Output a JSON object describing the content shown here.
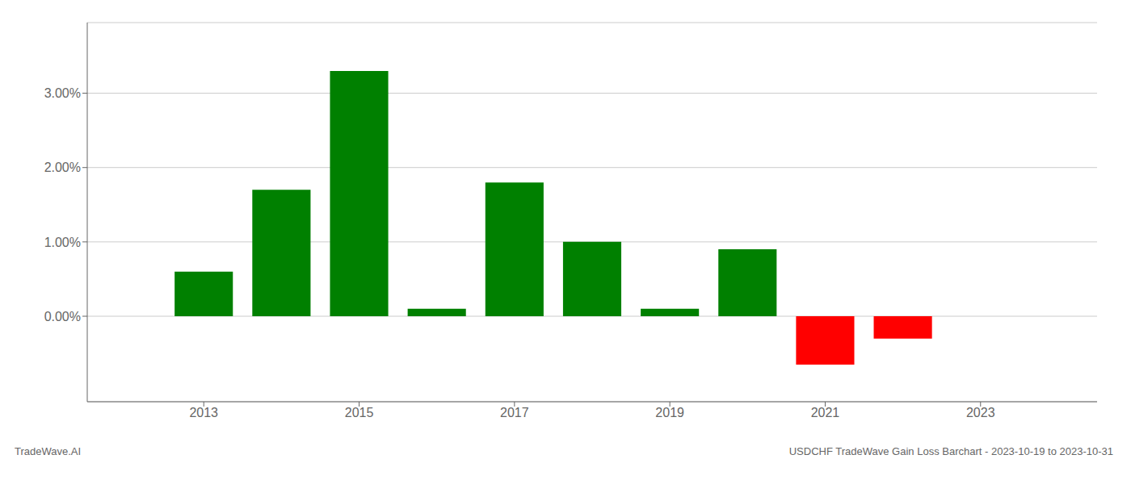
{
  "chart_data": {
    "type": "bar",
    "x": [
      2013,
      2014,
      2015,
      2016,
      2017,
      2018,
      2019,
      2020,
      2021,
      2022
    ],
    "values": [
      0.006,
      0.017,
      0.033,
      0.001,
      0.018,
      0.01,
      0.001,
      0.009,
      -0.0065,
      -0.003
    ],
    "colors": [
      "#008000",
      "#008000",
      "#008000",
      "#008000",
      "#008000",
      "#008000",
      "#008000",
      "#008000",
      "#ff0000",
      "#ff0000"
    ],
    "xlim": [
      2011.5,
      2024.5
    ],
    "xticks": [
      2013,
      2015,
      2017,
      2019,
      2021,
      2023
    ],
    "ylim": [
      -0.0115,
      0.0395
    ],
    "yticks": [
      {
        "value": 0.0,
        "label": "0.00%"
      },
      {
        "value": 0.01,
        "label": "1.00%"
      },
      {
        "value": 0.02,
        "label": "2.00%"
      },
      {
        "value": 0.03,
        "label": "3.00%"
      }
    ],
    "grid": true,
    "annotations": [
      "TradeWave.AI",
      "USDCHF TradeWave Gain Loss Barchart - 2023-10-19 to 2023-10-31"
    ]
  }
}
